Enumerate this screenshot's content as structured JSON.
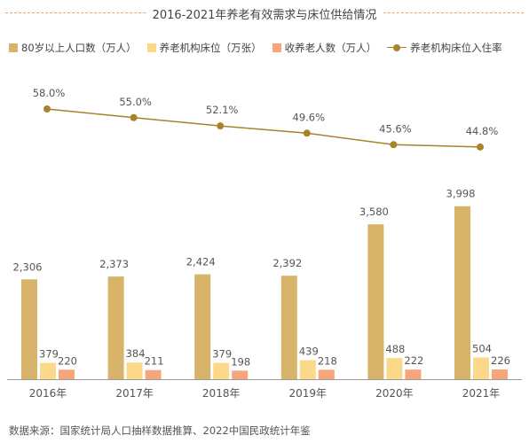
{
  "chart_data": {
    "type": "bar+line",
    "title": "2016-2021年养老有效需求与床位供给情况",
    "categories": [
      "2016年",
      "2017年",
      "2018年",
      "2019年",
      "2020年",
      "2021年"
    ],
    "series": [
      {
        "name": "80岁以上人口数（万人）",
        "type": "bar",
        "color": "#d8b46a",
        "values": [
          2306,
          2373,
          2424,
          2392,
          3580,
          3998
        ],
        "labels": [
          "2,306",
          "2,373",
          "2,424",
          "2,392",
          "3,580",
          "3,998"
        ]
      },
      {
        "name": "养老机构床位（万张）",
        "type": "bar",
        "color": "#fcd98a",
        "values": [
          379,
          384,
          379,
          439,
          488,
          504
        ],
        "labels": [
          "379",
          "384",
          "379",
          "439",
          "488",
          "504"
        ]
      },
      {
        "name": "收养老人数（万人）",
        "type": "bar",
        "color": "#f7a57a",
        "values": [
          220,
          211,
          198,
          218,
          222,
          226
        ],
        "labels": [
          "220",
          "211",
          "198",
          "218",
          "222",
          "226"
        ]
      },
      {
        "name": "养老机构床位入住率",
        "type": "line",
        "color": "#a88428",
        "values": [
          58.0,
          55.0,
          52.1,
          49.6,
          45.6,
          44.8
        ],
        "labels": [
          "58.0%",
          "55.0%",
          "52.1%",
          "49.6%",
          "45.6%",
          "44.8%"
        ]
      }
    ],
    "bar_axis_range": [
      0,
      4300
    ],
    "line_axis_range": [
      30,
      62
    ],
    "axes_visible": false,
    "grid": false,
    "legend_position": "top"
  },
  "source_note": "数据来源：国家统计局人口抽样数据推算、2022中国民政统计年鉴"
}
